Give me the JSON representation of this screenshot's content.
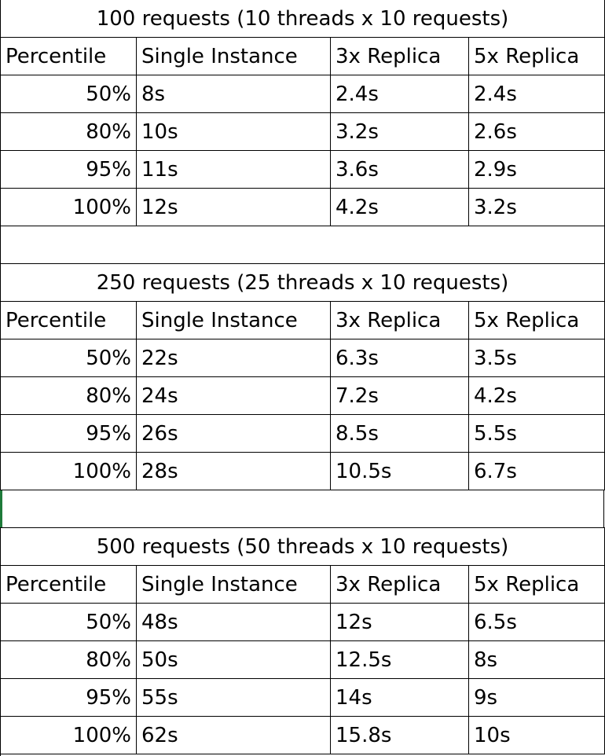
{
  "tables": [
    {
      "title": "100 requests (10 threads x 10 requests)",
      "headers": [
        "Percentile",
        "Single Instance",
        "3x Replica",
        "5x Replica"
      ],
      "rows": [
        [
          "50%",
          "8s",
          "2.4s",
          "2.4s"
        ],
        [
          "80%",
          "10s",
          "3.2s",
          "2.6s"
        ],
        [
          "95%",
          "11s",
          "3.6s",
          "2.9s"
        ],
        [
          "100%",
          "12s",
          "4.2s",
          "3.2s"
        ]
      ]
    },
    {
      "title": "250 requests (25 threads x 10 requests)",
      "headers": [
        "Percentile",
        "Single Instance",
        "3x Replica",
        "5x Replica"
      ],
      "rows": [
        [
          "50%",
          "22s",
          "6.3s",
          "3.5s"
        ],
        [
          "80%",
          "24s",
          "7.2s",
          "4.2s"
        ],
        [
          "95%",
          "26s",
          "8.5s",
          "5.5s"
        ],
        [
          "100%",
          "28s",
          "10.5s",
          "6.7s"
        ]
      ]
    },
    {
      "title": "500 requests (50 threads x 10 requests)",
      "headers": [
        "Percentile",
        "Single Instance",
        "3x Replica",
        "5x Replica"
      ],
      "rows": [
        [
          "50%",
          "48s",
          "12s",
          "6.5s"
        ],
        [
          "80%",
          "50s",
          "12.5s",
          "8s"
        ],
        [
          "95%",
          "55s",
          "14s",
          "9s"
        ],
        [
          "100%",
          "62s",
          "15.8s",
          "10s"
        ]
      ]
    }
  ],
  "colors": {
    "grid": "#000000",
    "selection_marker": "#1e7a3a"
  }
}
